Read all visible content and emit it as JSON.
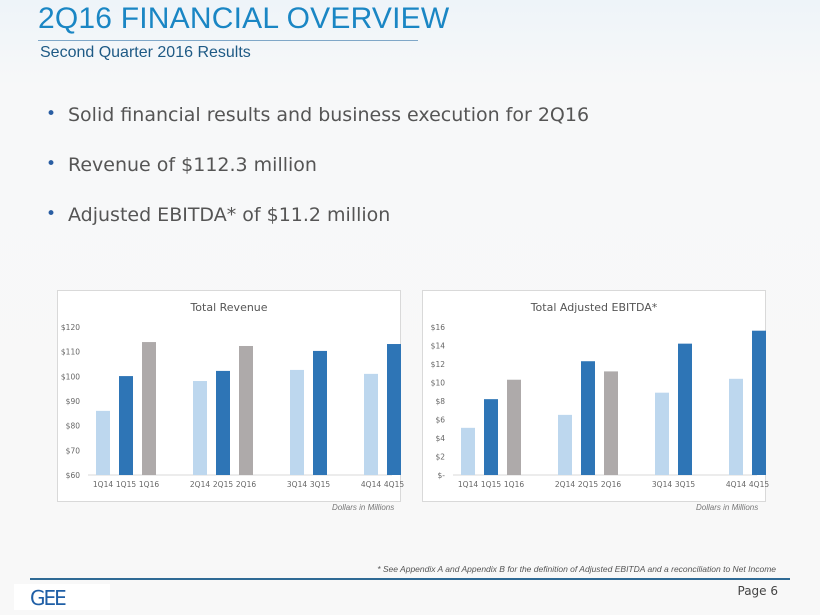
{
  "header": {
    "title": "2Q16 FINANCIAL OVERVIEW",
    "subtitle": "Second Quarter 2016 Results"
  },
  "bullets": [
    "Solid financial results and business execution for 2Q16",
    "Revenue of $112.3 million",
    "Adjusted EBITDA* of $11.2 million"
  ],
  "colors": {
    "title": "#1a86c4",
    "series_2014": "#bdd7ee",
    "series_2015": "#2e75b6",
    "series_2016": "#aeaaaa"
  },
  "chart_data": [
    {
      "type": "bar",
      "title": "Total Revenue",
      "xlabel": "",
      "ylabel": "",
      "note": "Dollars in Millions",
      "ylim": [
        60,
        120
      ],
      "yticks": [
        60,
        70,
        80,
        90,
        100,
        110,
        120
      ],
      "ytick_labels": [
        "$60",
        "$70",
        "$80",
        "$90",
        "$100",
        "$110",
        "$120"
      ],
      "grid": false,
      "legend": "none",
      "bars": [
        {
          "label": "1Q14",
          "value": 86.0,
          "series": "2014",
          "group": 0
        },
        {
          "label": "1Q15",
          "value": 100.1,
          "series": "2015",
          "group": 0
        },
        {
          "label": "1Q16",
          "value": 113.9,
          "series": "2016",
          "group": 0
        },
        {
          "label": "2Q14",
          "value": 98.1,
          "series": "2014",
          "group": 1
        },
        {
          "label": "2Q15",
          "value": 102.2,
          "series": "2015",
          "group": 1
        },
        {
          "label": "2Q16",
          "value": 112.3,
          "series": "2016",
          "group": 1
        },
        {
          "label": "3Q14",
          "value": 102.6,
          "series": "2014",
          "group": 2
        },
        {
          "label": "3Q15",
          "value": 110.3,
          "series": "2015",
          "group": 2
        },
        {
          "label": "4Q14",
          "value": 101.0,
          "series": "2014",
          "group": 3
        },
        {
          "label": "4Q15",
          "value": 113.1,
          "series": "2015",
          "group": 3
        }
      ]
    },
    {
      "type": "bar",
      "title": "Total Adjusted EBITDA*",
      "xlabel": "",
      "ylabel": "",
      "note": "Dollars in Millions",
      "ylim": [
        0,
        16
      ],
      "yticks": [
        0,
        2,
        4,
        6,
        8,
        10,
        12,
        14,
        16
      ],
      "ytick_labels": [
        "$-",
        "$2",
        "$4",
        "$6",
        "$8",
        "$10",
        "$12",
        "$14",
        "$16"
      ],
      "grid": false,
      "legend": "none",
      "bars": [
        {
          "label": "1Q14",
          "value": 5.1,
          "series": "2014",
          "group": 0
        },
        {
          "label": "1Q15",
          "value": 8.2,
          "series": "2015",
          "group": 0
        },
        {
          "label": "1Q16",
          "value": 10.3,
          "series": "2016",
          "group": 0
        },
        {
          "label": "2Q14",
          "value": 6.5,
          "series": "2014",
          "group": 1
        },
        {
          "label": "2Q15",
          "value": 12.3,
          "series": "2015",
          "group": 1
        },
        {
          "label": "2Q16",
          "value": 11.2,
          "series": "2016",
          "group": 1
        },
        {
          "label": "3Q14",
          "value": 8.9,
          "series": "2014",
          "group": 2
        },
        {
          "label": "3Q15",
          "value": 14.2,
          "series": "2015",
          "group": 2
        },
        {
          "label": "4Q14",
          "value": 10.4,
          "series": "2014",
          "group": 3
        },
        {
          "label": "4Q15",
          "value": 15.6,
          "series": "2015",
          "group": 3
        }
      ]
    }
  ],
  "footer": {
    "footnote": "* See Appendix A and Appendix B for the definition of Adjusted EBITDA and a reconciliation to Net Income",
    "page": "Page 6",
    "logo_text": "GEE"
  }
}
